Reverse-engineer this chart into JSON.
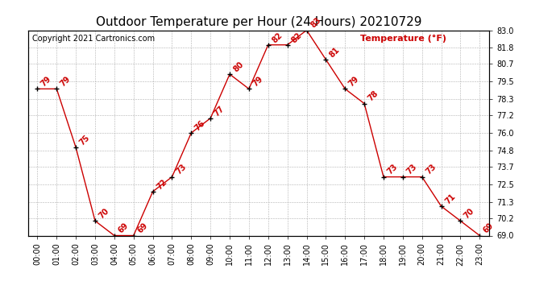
{
  "title": "Outdoor Temperature per Hour (24 Hours) 20210729",
  "copyright": "Copyright 2021 Cartronics.com",
  "legend_label": "Temperature (°F)",
  "hours": [
    "00:00",
    "01:00",
    "02:00",
    "03:00",
    "04:00",
    "05:00",
    "06:00",
    "07:00",
    "08:00",
    "09:00",
    "10:00",
    "11:00",
    "12:00",
    "13:00",
    "14:00",
    "15:00",
    "16:00",
    "17:00",
    "18:00",
    "19:00",
    "20:00",
    "21:00",
    "22:00",
    "23:00"
  ],
  "temps": [
    79,
    79,
    75,
    70,
    69,
    69,
    72,
    73,
    76,
    77,
    80,
    79,
    82,
    82,
    83,
    81,
    79,
    78,
    73,
    73,
    73,
    71,
    70,
    69
  ],
  "ylim_min": 69.0,
  "ylim_max": 83.0,
  "yticks": [
    69.0,
    70.2,
    71.3,
    72.5,
    73.7,
    74.8,
    76.0,
    77.2,
    78.3,
    79.5,
    80.7,
    81.8,
    83.0
  ],
  "line_color": "#cc0000",
  "marker_color": "#000000",
  "grid_color": "#b0b0b0",
  "bg_color": "#ffffff",
  "title_fontsize": 11,
  "label_fontsize": 7,
  "annotation_fontsize": 7,
  "copyright_fontsize": 7,
  "legend_fontsize": 8
}
